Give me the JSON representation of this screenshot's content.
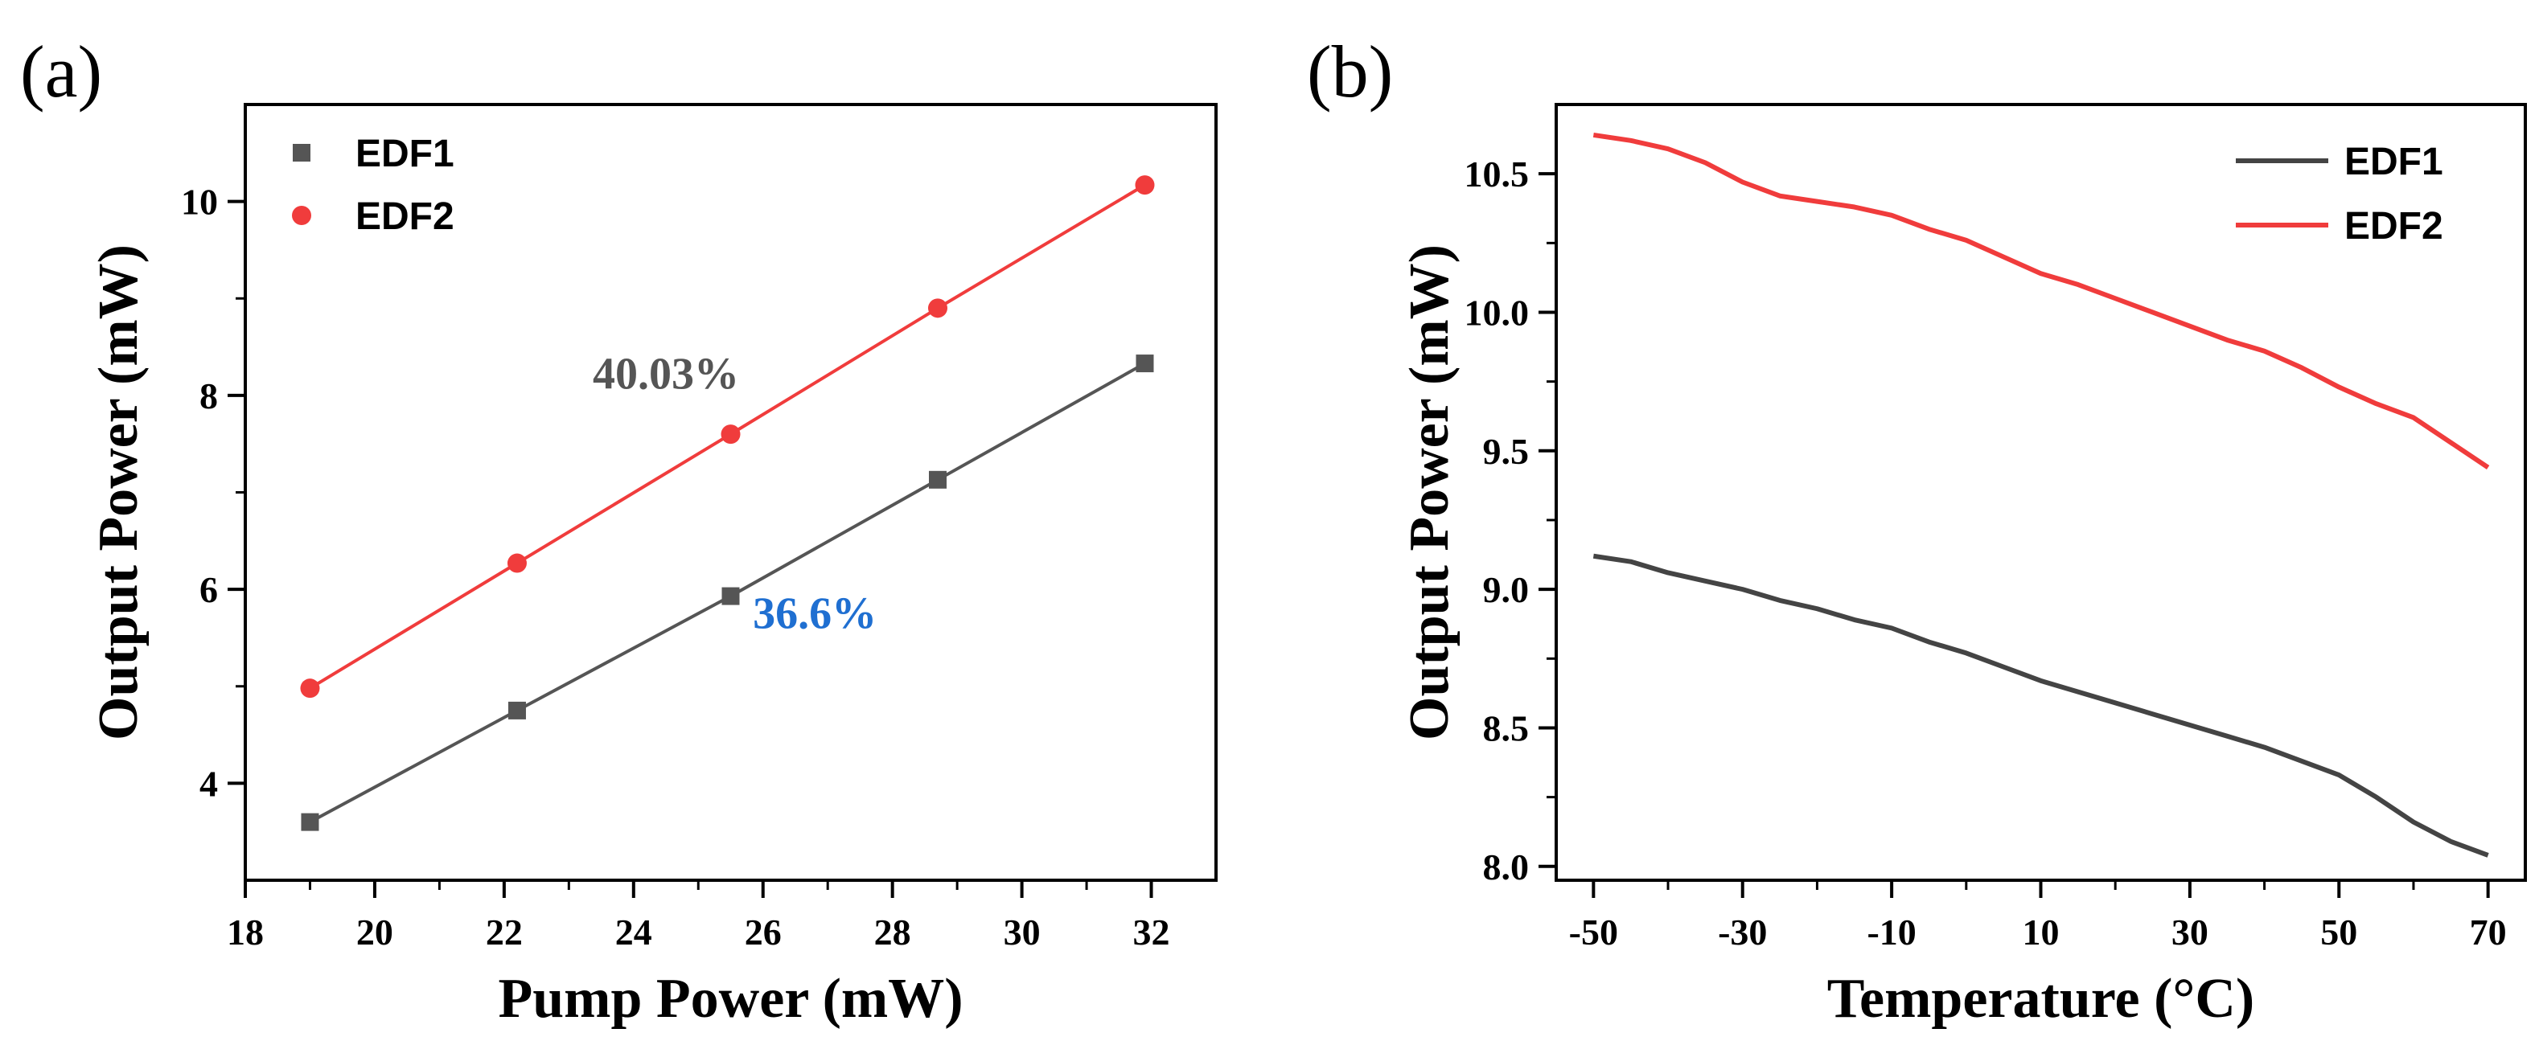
{
  "chart_data": [
    {
      "type": "scatter",
      "panel_label": "(a)",
      "xlabel": "Pump Power (mW)",
      "ylabel": "Output Power (mW)",
      "xlim": [
        18,
        33
      ],
      "ylim": [
        3,
        11
      ],
      "xticks": [
        18,
        20,
        22,
        24,
        26,
        28,
        30,
        32
      ],
      "yticks": [
        4,
        6,
        8,
        10
      ],
      "legend_position": "top-left",
      "series": [
        {
          "name": "EDF1",
          "marker": "square",
          "color": "#555555",
          "x": [
            19.0,
            22.2,
            25.5,
            28.7,
            31.9
          ],
          "y": [
            3.6,
            4.75,
            5.93,
            7.13,
            8.33
          ]
        },
        {
          "name": "EDF2",
          "marker": "circle",
          "color": "#f03c3c",
          "x": [
            19.0,
            22.2,
            25.5,
            28.7,
            31.9
          ],
          "y": [
            4.98,
            6.27,
            7.6,
            8.9,
            10.17
          ]
        }
      ],
      "annotations": [
        {
          "text": "40.03%",
          "x": 24.5,
          "y": 8.07,
          "color": "#555555"
        },
        {
          "text": "36.6%",
          "x": 26.8,
          "y": 5.6,
          "color": "#1f6fd1"
        }
      ]
    },
    {
      "type": "line",
      "panel_label": "(b)",
      "xlabel": "Temperature (°C)",
      "ylabel": "Output Power (mW)",
      "xlim": [
        -55,
        75
      ],
      "ylim": [
        7.95,
        10.75
      ],
      "xticks": [
        -50,
        -30,
        -10,
        10,
        30,
        50,
        70
      ],
      "yticks": [
        "8.0",
        "8.5",
        "9.0",
        "9.5",
        "10.0",
        "10.5"
      ],
      "legend_position": "top-right",
      "series": [
        {
          "name": "EDF1",
          "color": "#444444",
          "x": [
            -50,
            -45,
            -40,
            -35,
            -30,
            -25,
            -20,
            -15,
            -10,
            -5,
            0,
            5,
            10,
            15,
            20,
            25,
            30,
            35,
            40,
            45,
            50,
            55,
            60,
            65,
            70
          ],
          "y": [
            9.12,
            9.1,
            9.06,
            9.03,
            9.0,
            8.96,
            8.93,
            8.89,
            8.86,
            8.81,
            8.77,
            8.72,
            8.67,
            8.63,
            8.59,
            8.55,
            8.51,
            8.47,
            8.43,
            8.38,
            8.33,
            8.25,
            8.16,
            8.09,
            8.04
          ]
        },
        {
          "name": "EDF2",
          "color": "#f03c3c",
          "x": [
            -50,
            -45,
            -40,
            -35,
            -30,
            -25,
            -20,
            -15,
            -10,
            -5,
            0,
            5,
            10,
            15,
            20,
            25,
            30,
            35,
            40,
            45,
            50,
            55,
            60,
            65,
            70
          ],
          "y": [
            10.64,
            10.62,
            10.59,
            10.54,
            10.47,
            10.42,
            10.4,
            10.38,
            10.35,
            10.3,
            10.26,
            10.2,
            10.14,
            10.1,
            10.05,
            10.0,
            9.95,
            9.9,
            9.86,
            9.8,
            9.73,
            9.67,
            9.62,
            9.53,
            9.44
          ]
        }
      ]
    }
  ]
}
